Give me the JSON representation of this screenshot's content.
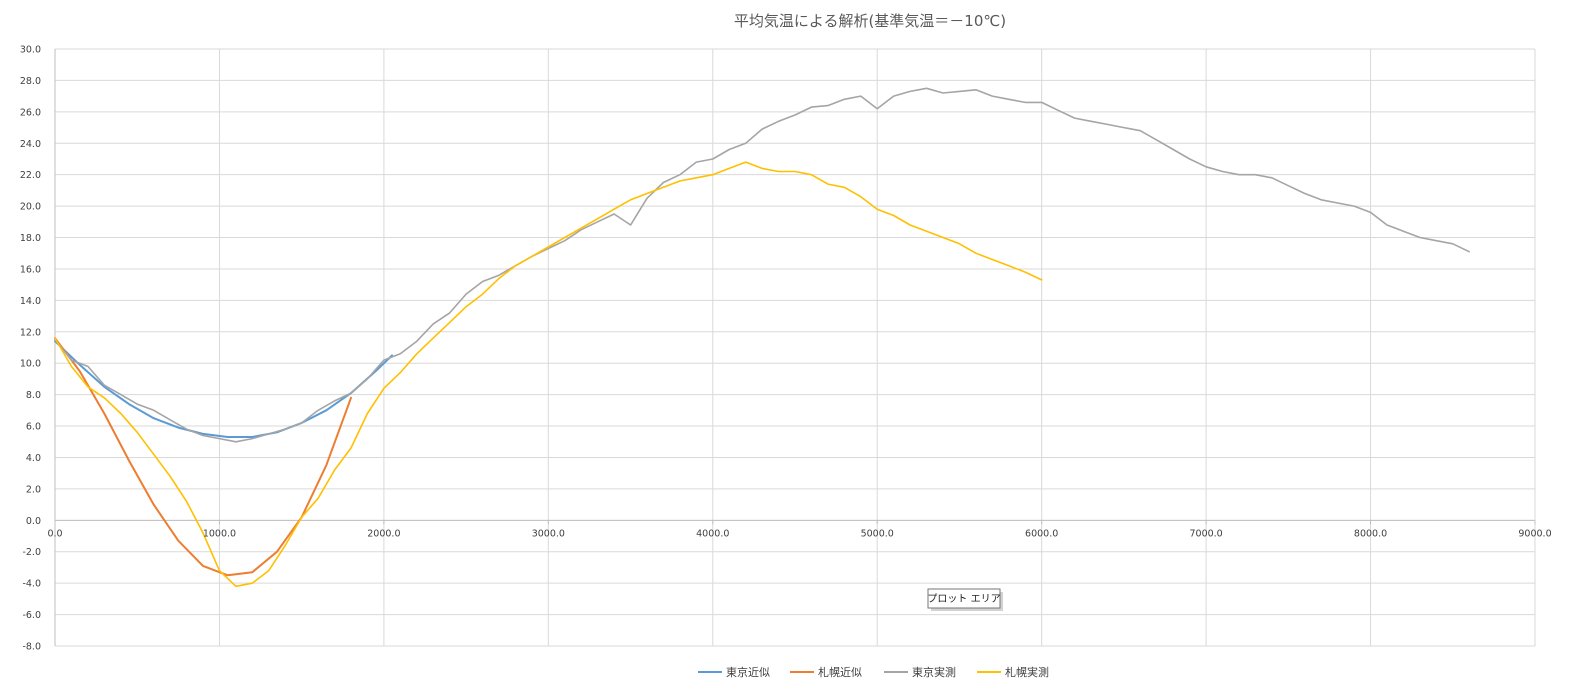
{
  "chart_data": {
    "type": "line",
    "title": "平均気温による解析(基準気温＝－10℃)",
    "xlim": [
      0,
      9000
    ],
    "ylim": [
      -8,
      30
    ],
    "x_ticks": [
      0,
      1000,
      2000,
      3000,
      4000,
      5000,
      6000,
      7000,
      8000,
      9000
    ],
    "x_tick_labels": [
      "0.0",
      "1000.0",
      "2000.0",
      "3000.0",
      "4000.0",
      "5000.0",
      "6000.0",
      "7000.0",
      "8000.0",
      "9000.0"
    ],
    "y_ticks": [
      -8,
      -6,
      -4,
      -2,
      0,
      2,
      4,
      6,
      8,
      10,
      12,
      14,
      16,
      18,
      20,
      22,
      24,
      26,
      28,
      30
    ],
    "y_tick_labels": [
      "-8.0",
      "-6.0",
      "-4.0",
      "-2.0",
      "0.0",
      "2.0",
      "4.0",
      "6.0",
      "8.0",
      "10.0",
      "12.0",
      "14.0",
      "16.0",
      "18.0",
      "20.0",
      "22.0",
      "24.0",
      "26.0",
      "28.0",
      "30.0"
    ],
    "grid": true,
    "legend_position": "bottom",
    "series": [
      {
        "name": "東京近似",
        "color": "#5B9BD5",
        "x": [
          0,
          150,
          300,
          450,
          600,
          750,
          900,
          1050,
          1200,
          1350,
          1500,
          1650,
          1800,
          1950,
          2050
        ],
        "y": [
          11.4,
          9.9,
          8.5,
          7.4,
          6.5,
          5.9,
          5.5,
          5.3,
          5.3,
          5.6,
          6.2,
          7.0,
          8.1,
          9.5,
          10.5
        ]
      },
      {
        "name": "札幌近似",
        "color": "#ED7D31",
        "x": [
          0,
          150,
          300,
          450,
          600,
          750,
          900,
          1050,
          1200,
          1350,
          1500,
          1650,
          1800
        ],
        "y": [
          11.6,
          9.5,
          6.8,
          3.8,
          1.0,
          -1.3,
          -2.9,
          -3.5,
          -3.3,
          -2.0,
          0.2,
          3.5,
          7.8
        ]
      },
      {
        "name": "東京実測",
        "color": "#A5A5A5",
        "x": [
          0,
          100,
          200,
          300,
          400,
          500,
          600,
          700,
          800,
          900,
          1000,
          1100,
          1200,
          1300,
          1400,
          1500,
          1600,
          1700,
          1800,
          1900,
          2000,
          2100,
          2200,
          2300,
          2400,
          2500,
          2600,
          2700,
          2800,
          2900,
          3000,
          3100,
          3200,
          3300,
          3400,
          3500,
          3600,
          3700,
          3800,
          3900,
          4000,
          4100,
          4200,
          4300,
          4400,
          4500,
          4600,
          4700,
          4800,
          4900,
          5000,
          5100,
          5200,
          5300,
          5400,
          5500,
          5600,
          5700,
          5800,
          5900,
          6000,
          6100,
          6200,
          6300,
          6400,
          6500,
          6600,
          6700,
          6800,
          6900,
          7000,
          7100,
          7200,
          7300,
          7400,
          7500,
          7600,
          7700,
          7800,
          7900,
          8000,
          8100,
          8200,
          8300,
          8400,
          8500,
          8600
        ],
        "y": [
          11.5,
          10.2,
          9.8,
          8.6,
          8.0,
          7.4,
          7.0,
          6.4,
          5.8,
          5.4,
          5.2,
          5.0,
          5.2,
          5.5,
          5.8,
          6.2,
          7.0,
          7.6,
          8.1,
          9.0,
          10.2,
          10.6,
          11.4,
          12.5,
          13.2,
          14.4,
          15.2,
          15.6,
          16.2,
          16.8,
          17.3,
          17.8,
          18.5,
          19.0,
          19.5,
          18.8,
          20.5,
          21.5,
          22.0,
          22.8,
          23.0,
          23.6,
          24.0,
          24.9,
          25.4,
          25.8,
          26.3,
          26.4,
          26.8,
          27.0,
          26.2,
          27.0,
          27.3,
          27.5,
          27.2,
          27.3,
          27.4,
          27.0,
          26.8,
          26.6,
          26.6,
          26.1,
          25.6,
          25.4,
          25.2,
          25.0,
          24.8,
          24.2,
          23.6,
          23.0,
          22.5,
          22.2,
          22.0,
          22.0,
          21.8,
          21.3,
          20.8,
          20.4,
          20.2,
          20.0,
          19.6,
          18.8,
          18.4,
          18.0,
          17.8,
          17.6,
          17.1
        ]
      },
      {
        "name": "札幌実測",
        "color": "#FFC000",
        "x": [
          0,
          100,
          200,
          300,
          400,
          500,
          600,
          700,
          800,
          900,
          1000,
          1100,
          1200,
          1300,
          1400,
          1500,
          1600,
          1700,
          1800,
          1900,
          2000,
          2100,
          2200,
          2300,
          2400,
          2500,
          2600,
          2700,
          2800,
          2900,
          3000,
          3100,
          3200,
          3300,
          3400,
          3500,
          3600,
          3700,
          3800,
          3900,
          4000,
          4100,
          4200,
          4300,
          4400,
          4500,
          4600,
          4700,
          4800,
          4900,
          5000,
          5100,
          5200,
          5300,
          5400,
          5500,
          5600,
          5700,
          5800,
          5900,
          6000
        ],
        "y": [
          11.6,
          9.8,
          8.5,
          7.8,
          6.8,
          5.6,
          4.2,
          2.8,
          1.2,
          -0.8,
          -3.2,
          -4.2,
          -4.0,
          -3.2,
          -1.6,
          0.2,
          1.4,
          3.2,
          4.6,
          6.8,
          8.4,
          9.4,
          10.6,
          11.6,
          12.6,
          13.6,
          14.4,
          15.4,
          16.2,
          16.8,
          17.4,
          18.0,
          18.6,
          19.2,
          19.8,
          20.4,
          20.8,
          21.2,
          21.6,
          21.8,
          22.0,
          22.4,
          22.8,
          22.4,
          22.2,
          22.2,
          22.0,
          21.4,
          21.2,
          20.6,
          19.8,
          19.4,
          18.8,
          18.4,
          18.0,
          17.6,
          17.0,
          16.6,
          16.2,
          15.8,
          15.3
        ]
      }
    ]
  },
  "tooltip": {
    "label": "プロット エリア"
  }
}
